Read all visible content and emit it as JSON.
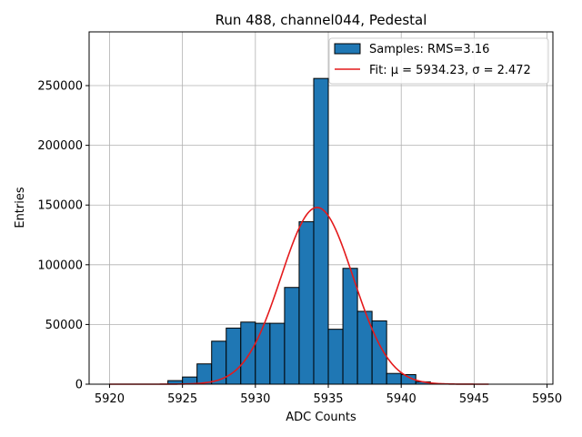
{
  "chart_data": {
    "type": "bar",
    "title": "Run 488, channel044, Pedestal",
    "xlabel": "ADC Counts",
    "ylabel": "Entries",
    "xlim": [
      5918.6,
      5950.4
    ],
    "ylim": [
      0,
      295000
    ],
    "xticks": [
      5920,
      5925,
      5930,
      5935,
      5940,
      5945,
      5950
    ],
    "yticks": [
      0,
      50000,
      100000,
      150000,
      200000,
      250000
    ],
    "grid": true,
    "legend_position": "top-right",
    "bin_width": 1,
    "bins": [
      {
        "x": 5924,
        "value": 3000
      },
      {
        "x": 5925,
        "value": 6000
      },
      {
        "x": 5926,
        "value": 17000
      },
      {
        "x": 5927,
        "value": 36000
      },
      {
        "x": 5928,
        "value": 47000
      },
      {
        "x": 5929,
        "value": 52000
      },
      {
        "x": 5930,
        "value": 51000
      },
      {
        "x": 5931,
        "value": 51000
      },
      {
        "x": 5932,
        "value": 81000
      },
      {
        "x": 5933,
        "value": 136000
      },
      {
        "x": 5934,
        "value": 256000
      },
      {
        "x": 5935,
        "value": 46000
      },
      {
        "x": 5936,
        "value": 97000
      },
      {
        "x": 5937,
        "value": 61000
      },
      {
        "x": 5938,
        "value": 53000
      },
      {
        "x": 5939,
        "value": 9000
      },
      {
        "x": 5940,
        "value": 8000
      },
      {
        "x": 5941,
        "value": 2000
      },
      {
        "x": 5942,
        "value": 400
      }
    ],
    "fit": {
      "type": "gaussian",
      "mu": 5934.23,
      "sigma": 2.472,
      "amplitude": 148000,
      "x_range": [
        5920,
        5946
      ]
    },
    "series": [
      {
        "name": "Samples: RMS=3.16",
        "kind": "histogram",
        "color": "#1f77b4"
      },
      {
        "name": "Fit: μ = 5934.23, σ = 2.472",
        "kind": "line",
        "color": "#e41a1c"
      }
    ]
  }
}
